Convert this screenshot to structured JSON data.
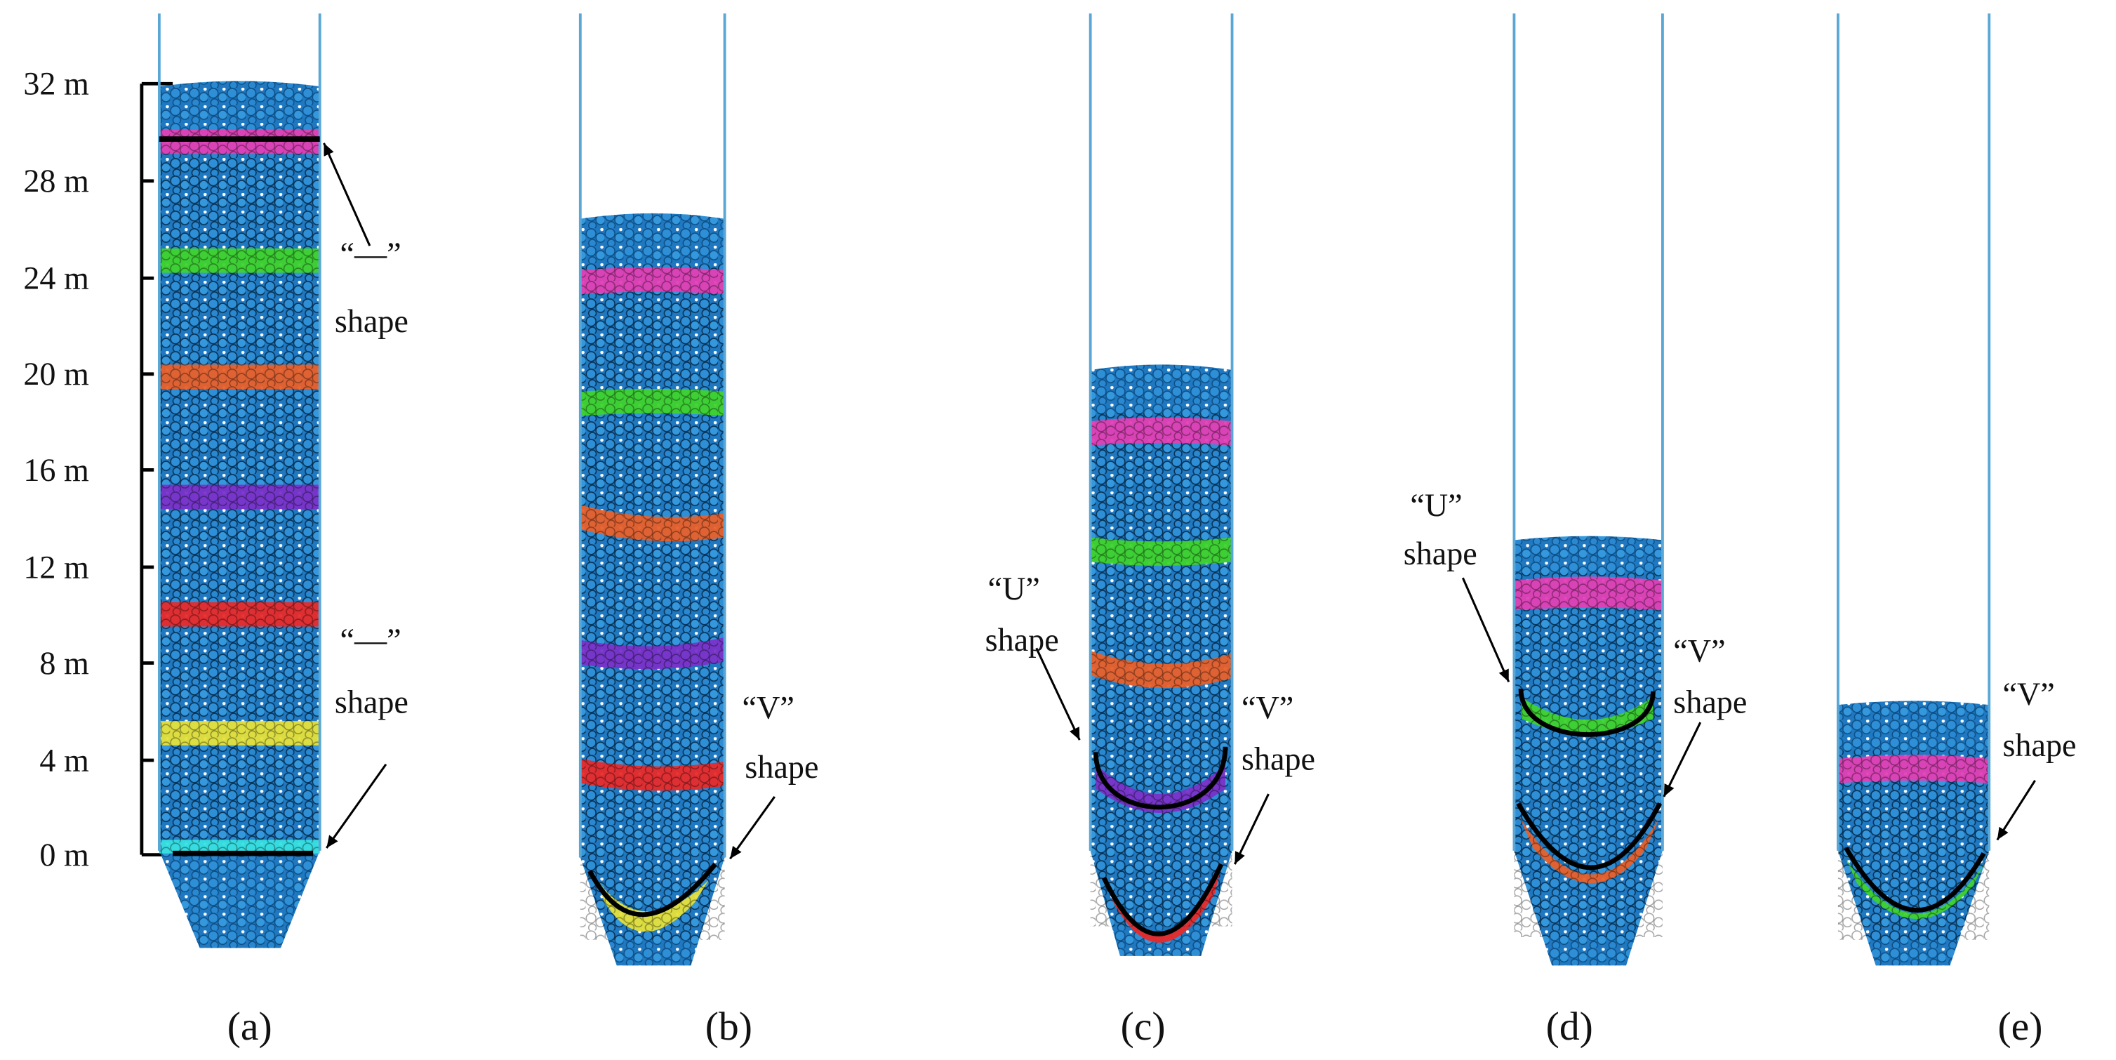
{
  "scale": {
    "labels": [
      "32 m",
      "28 m",
      "24 m",
      "20 m",
      "16 m",
      "12 m",
      "8 m",
      "4 m",
      "0 m"
    ]
  },
  "panels": [
    {
      "label": "(a)",
      "annotations": [
        {
          "lines": [
            "“—”",
            "shape"
          ]
        },
        {
          "lines": [
            "“—”",
            "shape"
          ]
        }
      ]
    },
    {
      "label": "(b)",
      "annotations": [
        {
          "lines": [
            "“V”",
            "shape"
          ]
        }
      ]
    },
    {
      "label": "(c)",
      "annotations": [
        {
          "lines": [
            "“U”",
            "shape"
          ]
        },
        {
          "lines": [
            "“V”",
            "shape"
          ]
        }
      ]
    },
    {
      "label": "(d)",
      "annotations": [
        {
          "lines": [
            "“U”",
            "shape"
          ]
        },
        {
          "lines": [
            "“V”",
            "shape"
          ]
        }
      ]
    },
    {
      "label": "(e)",
      "annotations": [
        {
          "lines": [
            "“V”",
            "shape"
          ]
        }
      ]
    }
  ]
}
